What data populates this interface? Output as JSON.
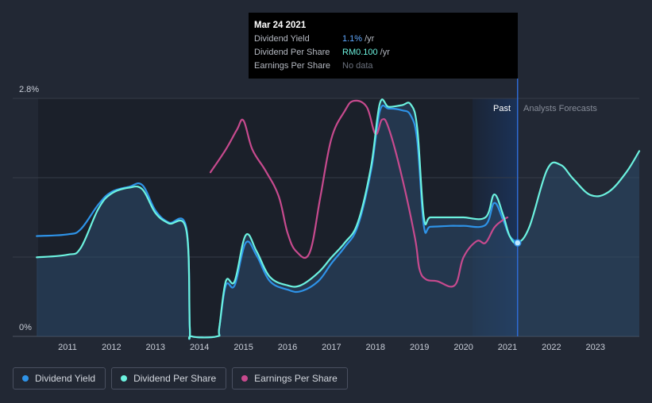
{
  "chart_data": {
    "type": "line",
    "title": "",
    "ylabel": "",
    "ylim": [
      0,
      2.8
    ],
    "y_tick_labels": [
      "2.8%",
      "0%"
    ],
    "x_tick_labels": [
      "2011",
      "2012",
      "2013",
      "2014",
      "2015",
      "2016",
      "2017",
      "2018",
      "2019",
      "2020",
      "2021",
      "2022",
      "2023"
    ],
    "regions": {
      "past_label": "Past",
      "forecast_label": "Analysts Forecasts"
    },
    "cursor_date": 2021.23,
    "colors": {
      "yield": "#2e93e8",
      "dps": "#6cf2df",
      "eps": "#c74a8e",
      "band": "#1b3257"
    },
    "series": [
      {
        "name": "Dividend Yield",
        "x": [
          2010.3,
          2011.0,
          2011.3,
          2011.7,
          2012.0,
          2012.4,
          2012.7,
          2013.0,
          2013.3,
          2013.7,
          2013.78,
          2013.82,
          2014.4,
          2014.45,
          2014.6,
          2014.8,
          2015.05,
          2015.3,
          2015.6,
          2016.0,
          2016.3,
          2016.7,
          2017.0,
          2017.3,
          2017.6,
          2017.9,
          2018.1,
          2018.3,
          2018.6,
          2018.8,
          2018.95,
          2019.1,
          2019.25,
          2019.7,
          2020.0,
          2020.5,
          2020.7,
          2020.9,
          2021.05,
          2021.23
        ],
        "values": [
          1.18,
          1.2,
          1.26,
          1.55,
          1.7,
          1.76,
          1.78,
          1.48,
          1.34,
          1.28,
          0.1,
          0.0,
          0.0,
          0.1,
          0.6,
          0.6,
          1.1,
          0.95,
          0.65,
          0.55,
          0.53,
          0.65,
          0.86,
          1.05,
          1.3,
          1.95,
          2.65,
          2.68,
          2.66,
          2.6,
          2.3,
          1.3,
          1.29,
          1.3,
          1.3,
          1.31,
          1.57,
          1.37,
          1.18,
          1.1
        ]
      },
      {
        "name": "Dividend Per Share",
        "x": [
          2010.3,
          2011.0,
          2011.3,
          2011.7,
          2012.0,
          2012.4,
          2012.7,
          2013.0,
          2013.3,
          2013.7,
          2013.78,
          2013.82,
          2014.4,
          2014.45,
          2014.6,
          2014.8,
          2015.05,
          2015.3,
          2015.6,
          2016.0,
          2016.3,
          2016.7,
          2017.0,
          2017.3,
          2017.6,
          2017.9,
          2018.1,
          2018.3,
          2018.6,
          2018.8,
          2018.95,
          2019.1,
          2019.25,
          2019.7,
          2020.0,
          2020.5,
          2020.7,
          2020.9,
          2021.05,
          2021.23,
          2021.5,
          2021.9,
          2022.2,
          2022.5,
          2022.9,
          2023.3,
          2023.7,
          2024.0
        ],
        "values": [
          0.93,
          0.96,
          1.04,
          1.5,
          1.68,
          1.75,
          1.73,
          1.45,
          1.33,
          1.25,
          0.1,
          0.0,
          0.0,
          0.1,
          0.65,
          0.65,
          1.19,
          1.0,
          0.7,
          0.6,
          0.6,
          0.75,
          0.93,
          1.1,
          1.34,
          2.0,
          2.74,
          2.7,
          2.72,
          2.73,
          2.45,
          1.4,
          1.4,
          1.4,
          1.4,
          1.4,
          1.67,
          1.43,
          1.18,
          1.1,
          1.29,
          1.96,
          2.02,
          1.85,
          1.66,
          1.7,
          1.93,
          2.18
        ]
      },
      {
        "name": "Earnings Per Share",
        "x": [
          2014.25,
          2014.6,
          2014.85,
          2015.0,
          2015.2,
          2015.5,
          2015.8,
          2016.0,
          2016.2,
          2016.5,
          2016.75,
          2017.0,
          2017.3,
          2017.5,
          2017.8,
          2018.0,
          2018.15,
          2018.3,
          2018.6,
          2018.9,
          2019.0,
          2019.15,
          2019.4,
          2019.8,
          2020.0,
          2020.3,
          2020.5,
          2020.7,
          2020.9,
          2021.0
        ],
        "values": [
          1.93,
          2.2,
          2.43,
          2.54,
          2.2,
          1.95,
          1.65,
          1.22,
          1.0,
          0.98,
          1.65,
          2.33,
          2.65,
          2.77,
          2.7,
          2.38,
          2.55,
          2.45,
          1.88,
          1.15,
          0.79,
          0.67,
          0.65,
          0.6,
          0.93,
          1.12,
          1.1,
          1.28,
          1.37,
          1.4
        ]
      }
    ]
  },
  "tooltip": {
    "date": "Mar 24 2021",
    "rows": [
      {
        "name": "Dividend Yield",
        "value": "1.1%",
        "unit": "/yr"
      },
      {
        "name": "Dividend Per Share",
        "value": "RM0.100",
        "unit": "/yr"
      },
      {
        "name": "Earnings Per Share",
        "value": "No data"
      }
    ]
  },
  "legend": [
    {
      "label": "Dividend Yield",
      "color": "#2e93e8"
    },
    {
      "label": "Dividend Per Share",
      "color": "#6cf2df"
    },
    {
      "label": "Earnings Per Share",
      "color": "#c74a8e"
    }
  ]
}
